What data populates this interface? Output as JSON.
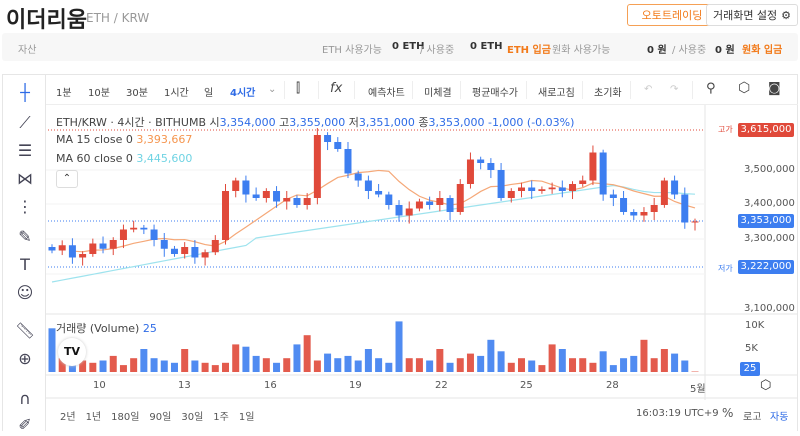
{
  "header": {
    "title": "이더리움",
    "pair": "ETH / KRW",
    "auto_trading": "오토트레이딩",
    "screen_settings": "거래화면 설정"
  },
  "asset_bar": {
    "label": "자산",
    "eth_available_label": "ETH 사용가능",
    "eth_available": "0 ETH",
    "eth_in_use_label": "/ 사용중",
    "eth_in_use": "0 ETH",
    "eth_deposit": "ETH 입금",
    "krw_available_label": "원화 사용가능",
    "krw_available": "0 원",
    "krw_in_use_label": "/ 사용중",
    "krw_in_use": "0 원",
    "krw_deposit": "원화 입금"
  },
  "toolbar": {
    "intervals": [
      "1분",
      "10분",
      "30분",
      "1시간",
      "일",
      "4시간"
    ],
    "active_interval": "4시간",
    "buttons": [
      "예측차트",
      "미체결",
      "평균매수가",
      "새로고침",
      "초기화"
    ]
  },
  "legend": {
    "symbol": "ETH/KRW · 4시간 · BITHUMB",
    "open_label": "시",
    "open": "3,354,000",
    "high_label": "고",
    "high": "3,355,000",
    "low_label": "저",
    "low": "3,351,000",
    "close_label": "종",
    "close": "3,353,000",
    "change": "-1,000 (-0.03%)",
    "ma15_label": "MA 15 close 0",
    "ma15": "3,393,667",
    "ma60_label": "MA 60 close 0",
    "ma60": "3,445,600",
    "volume_label": "거래량 (Volume)",
    "volume": "25"
  },
  "price_axis": {
    "ticks": [
      "3,500,000",
      "3,400,000",
      "3,300,000",
      "3,100,000"
    ],
    "high_label": "고가",
    "high_tag": "3,615,000",
    "current_tag": "3,353,000",
    "low_label": "저가",
    "low_tag": "3,222,000",
    "vol_ticks": [
      "10K",
      "5K"
    ],
    "vol_tag": "25"
  },
  "date_axis": [
    "10",
    "13",
    "16",
    "19",
    "22",
    "25",
    "28",
    "5월"
  ],
  "bottom": {
    "ranges": [
      "2년",
      "1년",
      "180일",
      "90일",
      "30일",
      "1주",
      "1일"
    ],
    "time": "16:03:19 UTC+9",
    "percent": "%",
    "log": "로고",
    "auto": "자동"
  },
  "colors": {
    "up": "#e0493a",
    "down": "#3d7ef0",
    "ma15": "#f5a878",
    "ma60": "#9ee3ee",
    "accent": "#f27a1a"
  },
  "chart_data": {
    "type": "candlestick",
    "price_range": [
      3100000,
      3640000
    ],
    "closes": [
      3270,
      3285,
      3250,
      3260,
      3290,
      3275,
      3300,
      3330,
      3335,
      3330,
      3300,
      3275,
      3260,
      3280,
      3250,
      3265,
      3300,
      3440,
      3470,
      3430,
      3420,
      3440,
      3410,
      3420,
      3400,
      3420,
      3600,
      3580,
      3560,
      3490,
      3470,
      3440,
      3430,
      3400,
      3370,
      3390,
      3410,
      3400,
      3420,
      3380,
      3460,
      3530,
      3520,
      3500,
      3420,
      3440,
      3450,
      3440,
      3445,
      3450,
      3440,
      3460,
      3470,
      3550,
      3430,
      3420,
      3380,
      3370,
      3380,
      3400,
      3470,
      3430,
      3350,
      3353
    ],
    "volumes_k": [
      9.5,
      3,
      3.5,
      2.5,
      2,
      2.5,
      3.5,
      1.5,
      3,
      5,
      3,
      2.5,
      2,
      5,
      2.5,
      2,
      1.5,
      2,
      6,
      5.5,
      3.5,
      3,
      2,
      3,
      6,
      8,
      2.5,
      4,
      3,
      3.5,
      2.5,
      5,
      3,
      2,
      11,
      3,
      3,
      2.5,
      5,
      2,
      3,
      4,
      3.5,
      7,
      4.5,
      2,
      3,
      2.5,
      1.5,
      6,
      5,
      3,
      3,
      2,
      4.5,
      1.5,
      3,
      3.5,
      7,
      3,
      5,
      4,
      2.5,
      0.1
    ]
  }
}
